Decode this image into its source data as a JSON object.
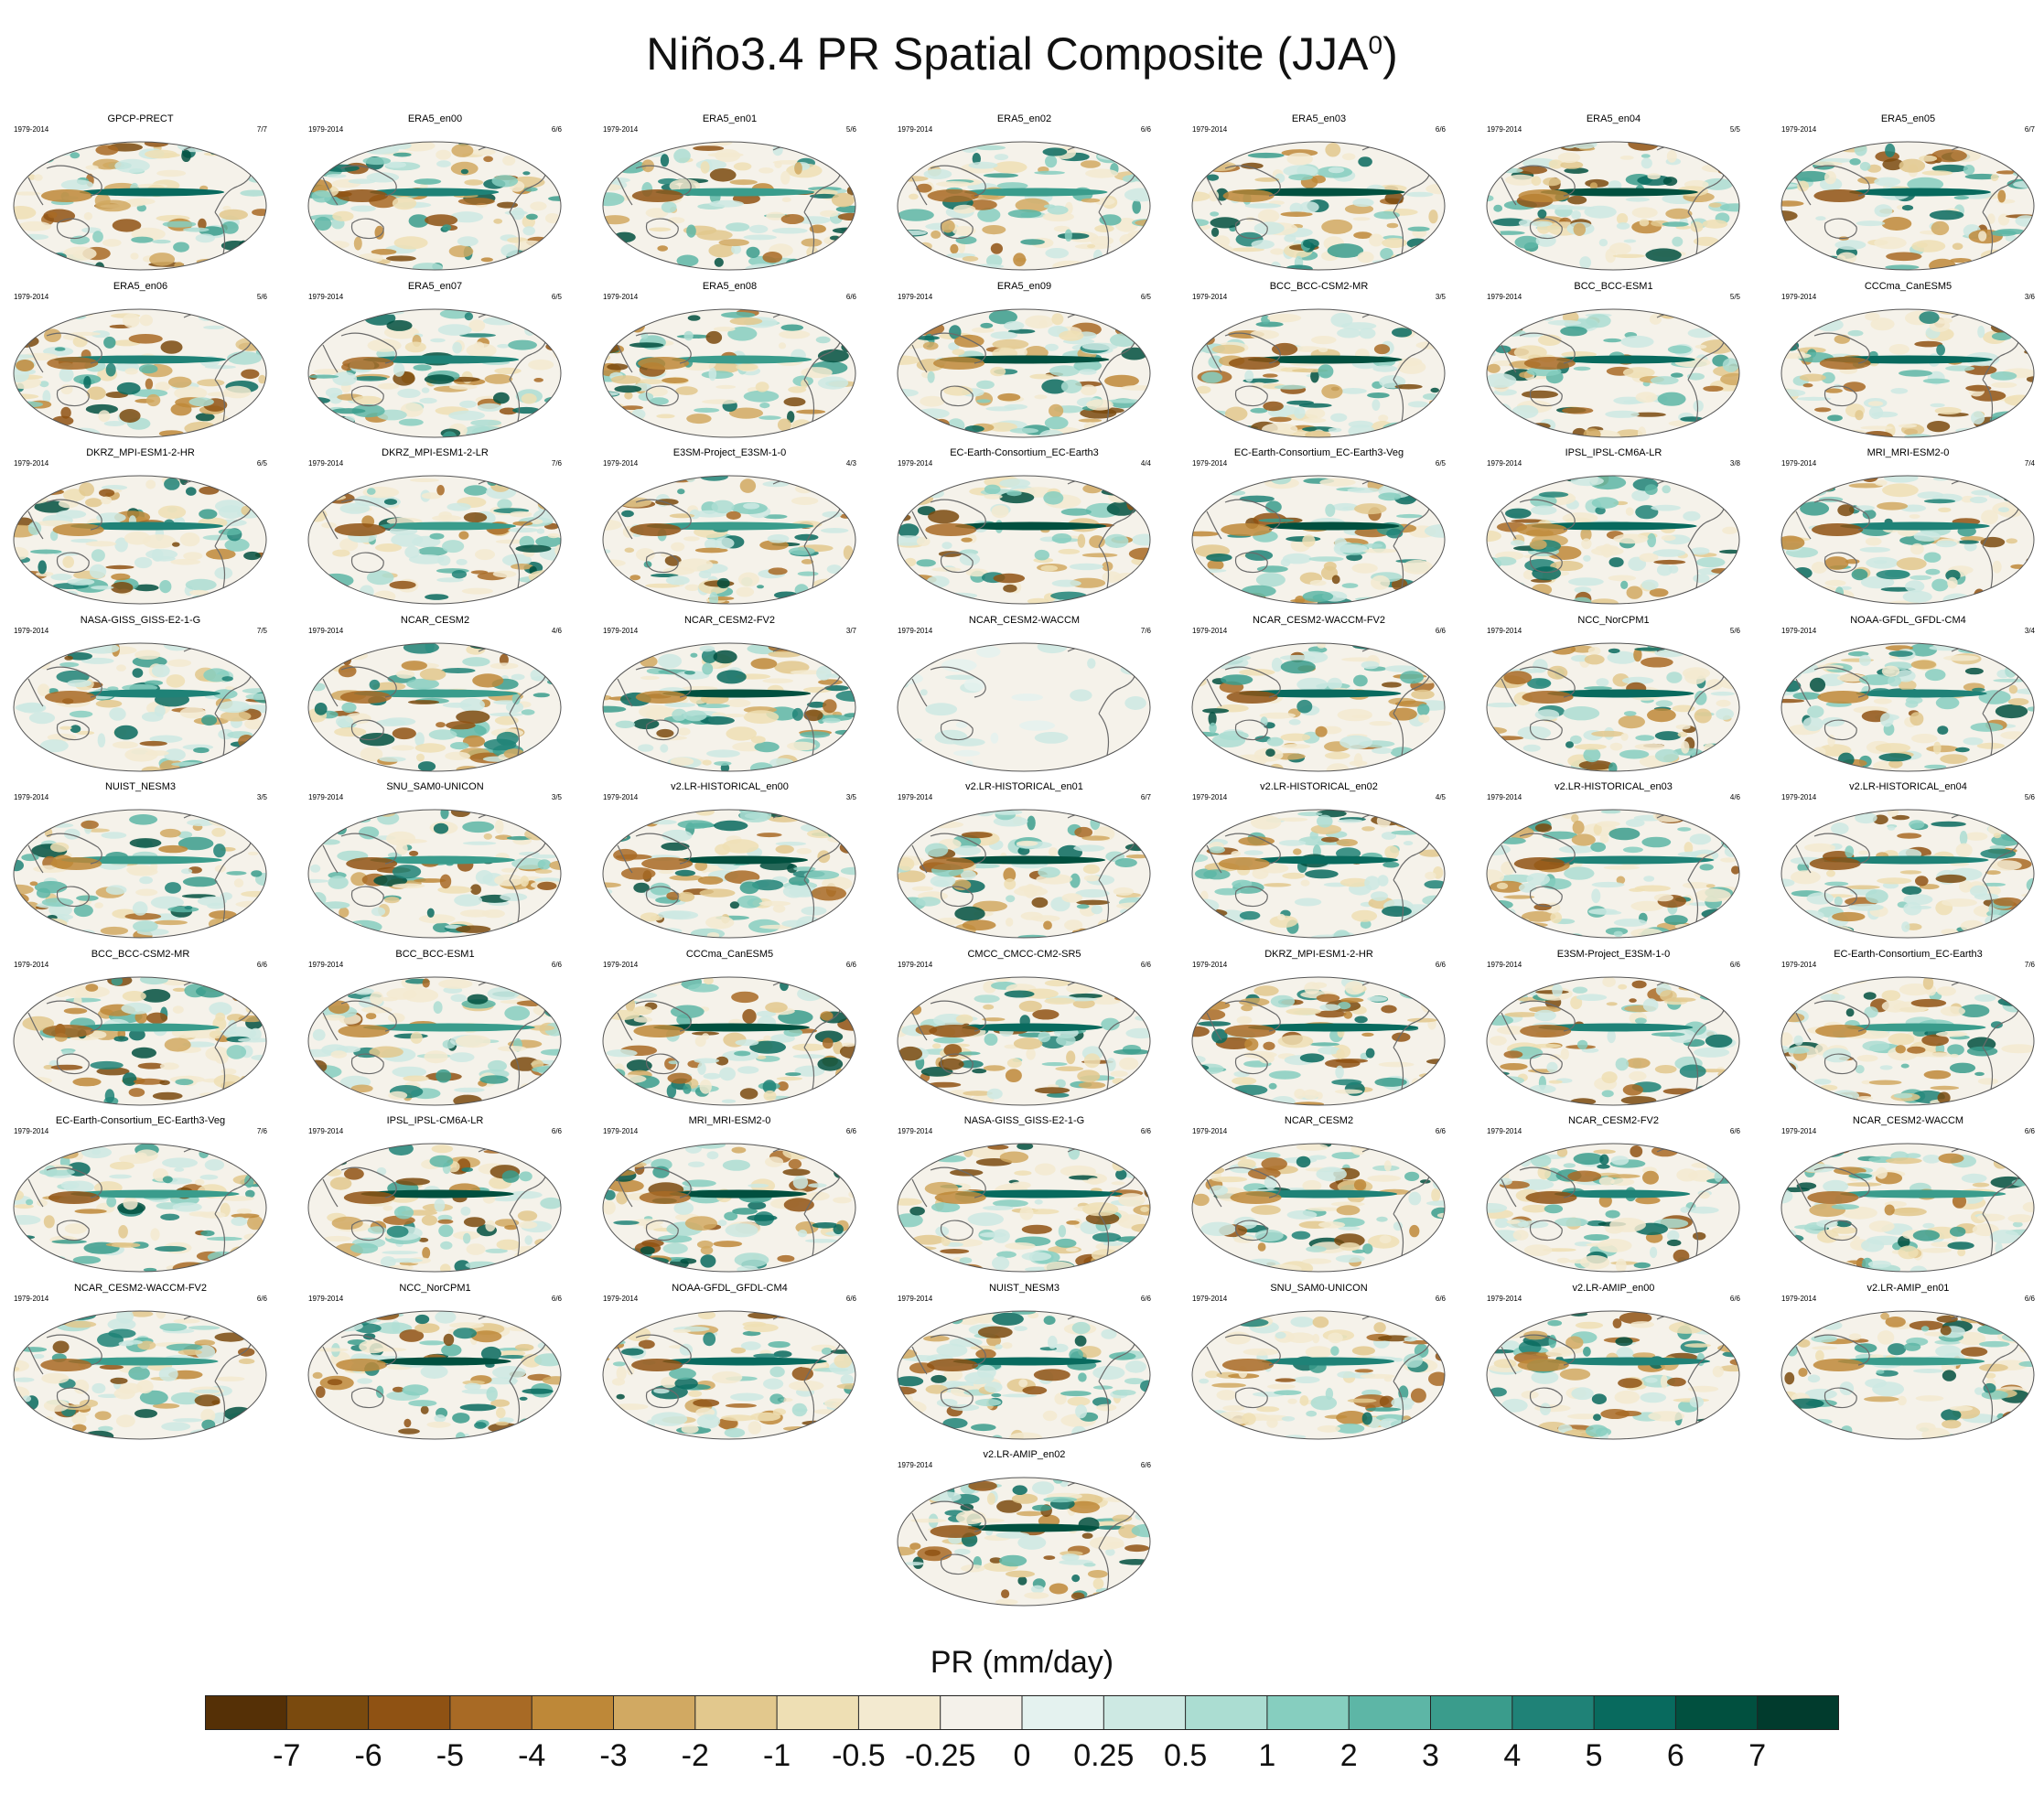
{
  "title_main": "Niño3.4 PR Spatial Composite (JJA",
  "title_sup": "0",
  "title_end": ")",
  "period": "1979-2014",
  "panels": [
    {
      "name": "GPCP-PRECT",
      "ratio": "7/7"
    },
    {
      "name": "ERA5_en00",
      "ratio": "6/6"
    },
    {
      "name": "ERA5_en01",
      "ratio": "5/6"
    },
    {
      "name": "ERA5_en02",
      "ratio": "6/6"
    },
    {
      "name": "ERA5_en03",
      "ratio": "6/6"
    },
    {
      "name": "ERA5_en04",
      "ratio": "5/5"
    },
    {
      "name": "ERA5_en05",
      "ratio": "6/7"
    },
    {
      "name": "ERA5_en06",
      "ratio": "5/6"
    },
    {
      "name": "ERA5_en07",
      "ratio": "6/5"
    },
    {
      "name": "ERA5_en08",
      "ratio": "6/6"
    },
    {
      "name": "ERA5_en09",
      "ratio": "6/5"
    },
    {
      "name": "BCC_BCC-CSM2-MR",
      "ratio": "3/5"
    },
    {
      "name": "BCC_BCC-ESM1",
      "ratio": "5/5"
    },
    {
      "name": "CCCma_CanESM5",
      "ratio": "3/6"
    },
    {
      "name": "DKRZ_MPI-ESM1-2-HR",
      "ratio": "6/5"
    },
    {
      "name": "DKRZ_MPI-ESM1-2-LR",
      "ratio": "7/6"
    },
    {
      "name": "E3SM-Project_E3SM-1-0",
      "ratio": "4/3"
    },
    {
      "name": "EC-Earth-Consortium_EC-Earth3",
      "ratio": "4/4"
    },
    {
      "name": "EC-Earth-Consortium_EC-Earth3-Veg",
      "ratio": "6/5"
    },
    {
      "name": "IPSL_IPSL-CM6A-LR",
      "ratio": "3/8"
    },
    {
      "name": "MRI_MRI-ESM2-0",
      "ratio": "7/4"
    },
    {
      "name": "NASA-GISS_GISS-E2-1-G",
      "ratio": "7/5"
    },
    {
      "name": "NCAR_CESM2",
      "ratio": "4/6"
    },
    {
      "name": "NCAR_CESM2-FV2",
      "ratio": "3/7"
    },
    {
      "name": "NCAR_CESM2-WACCM",
      "ratio": "7/6"
    },
    {
      "name": "NCAR_CESM2-WACCM-FV2",
      "ratio": "6/6"
    },
    {
      "name": "NCC_NorCPM1",
      "ratio": "5/6"
    },
    {
      "name": "NOAA-GFDL_GFDL-CM4",
      "ratio": "3/4"
    },
    {
      "name": "NUIST_NESM3",
      "ratio": "3/5"
    },
    {
      "name": "SNU_SAM0-UNICON",
      "ratio": "3/5"
    },
    {
      "name": "v2.LR-HISTORICAL_en00",
      "ratio": "3/5"
    },
    {
      "name": "v2.LR-HISTORICAL_en01",
      "ratio": "6/7"
    },
    {
      "name": "v2.LR-HISTORICAL_en02",
      "ratio": "4/5"
    },
    {
      "name": "v2.LR-HISTORICAL_en03",
      "ratio": "4/6"
    },
    {
      "name": "v2.LR-HISTORICAL_en04",
      "ratio": "5/6"
    },
    {
      "name": "BCC_BCC-CSM2-MR",
      "ratio": "6/6"
    },
    {
      "name": "BCC_BCC-ESM1",
      "ratio": "6/6"
    },
    {
      "name": "CCCma_CanESM5",
      "ratio": "6/6"
    },
    {
      "name": "CMCC_CMCC-CM2-SR5",
      "ratio": "6/6"
    },
    {
      "name": "DKRZ_MPI-ESM1-2-HR",
      "ratio": "6/6"
    },
    {
      "name": "E3SM-Project_E3SM-1-0",
      "ratio": "6/6"
    },
    {
      "name": "EC-Earth-Consortium_EC-Earth3",
      "ratio": "7/6"
    },
    {
      "name": "EC-Earth-Consortium_EC-Earth3-Veg",
      "ratio": "7/6"
    },
    {
      "name": "IPSL_IPSL-CM6A-LR",
      "ratio": "6/6"
    },
    {
      "name": "MRI_MRI-ESM2-0",
      "ratio": "6/6"
    },
    {
      "name": "NASA-GISS_GISS-E2-1-G",
      "ratio": "6/6"
    },
    {
      "name": "NCAR_CESM2",
      "ratio": "6/6"
    },
    {
      "name": "NCAR_CESM2-FV2",
      "ratio": "6/6"
    },
    {
      "name": "NCAR_CESM2-WACCM",
      "ratio": "6/6"
    },
    {
      "name": "NCAR_CESM2-WACCM-FV2",
      "ratio": "6/6"
    },
    {
      "name": "NCC_NorCPM1",
      "ratio": "6/6"
    },
    {
      "name": "NOAA-GFDL_GFDL-CM4",
      "ratio": "6/6"
    },
    {
      "name": "NUIST_NESM3",
      "ratio": "6/6"
    },
    {
      "name": "SNU_SAM0-UNICON",
      "ratio": "6/6"
    },
    {
      "name": "v2.LR-AMIP_en00",
      "ratio": "6/6"
    },
    {
      "name": "v2.LR-AMIP_en01",
      "ratio": "6/6"
    },
    {
      "name": "v2.LR-AMIP_en02",
      "ratio": "6/6"
    }
  ],
  "colorbar": {
    "title": "PR (mm/day)",
    "colors": [
      "#553006",
      "#7a4a0e",
      "#8f5213",
      "#a86a25",
      "#be8838",
      "#d1a962",
      "#e2c88d",
      "#eedfb4",
      "#f3ead0",
      "#f4f1ea",
      "#e4f2ef",
      "#cde9e3",
      "#abddd2",
      "#86cebf",
      "#5db6a6",
      "#3a9c8c",
      "#1f8277",
      "#086a5e",
      "#01503f",
      "#013b2d"
    ],
    "labels": [
      "-7",
      "-6",
      "-5",
      "-4",
      "-3",
      "-2",
      "-1",
      "-0.5",
      "-0.25",
      "0",
      "0.25",
      "0.5",
      "1",
      "2",
      "3",
      "4",
      "5",
      "6",
      "7"
    ]
  }
}
